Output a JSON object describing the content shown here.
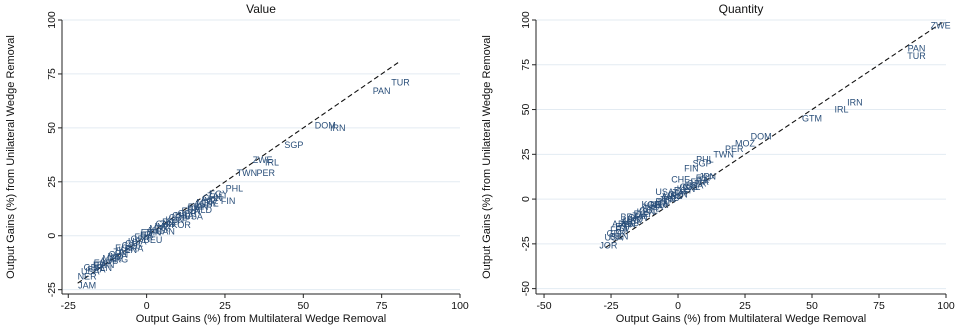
{
  "chart_data": [
    {
      "type": "scatter",
      "title": "Value",
      "xlabel": "Output Gains (%) from Multilateral Wedge Removal",
      "ylabel": "Output Gains (%) from Unilateral Wedge Removal",
      "xlim": [
        -27,
        100
      ],
      "ylim": [
        -27,
        100
      ],
      "xticks": [
        -25,
        0,
        25,
        50,
        75,
        100
      ],
      "yticks": [
        -25,
        0,
        25,
        50,
        75,
        100
      ],
      "grid": "horizontal",
      "reference_line": {
        "style": "dashed",
        "x": [
          -22,
          81
        ],
        "y": [
          -22,
          81
        ]
      },
      "labeled_points": [
        {
          "label": "TUR",
          "x": 81,
          "y": 71
        },
        {
          "label": "PAN",
          "x": 75,
          "y": 67
        },
        {
          "label": "IRN",
          "x": 61,
          "y": 50
        },
        {
          "label": "DOM",
          "x": 57,
          "y": 51
        },
        {
          "label": "SGP",
          "x": 47,
          "y": 42
        },
        {
          "label": "ZWE",
          "x": 37,
          "y": 35
        },
        {
          "label": "IRL",
          "x": 40,
          "y": 34
        },
        {
          "label": "PER",
          "x": 38,
          "y": 29
        },
        {
          "label": "TWN",
          "x": 32,
          "y": 29
        },
        {
          "label": "PHL",
          "x": 28,
          "y": 22
        },
        {
          "label": "FIN",
          "x": 26,
          "y": 16
        },
        {
          "label": "CHE",
          "x": 20,
          "y": 15
        },
        {
          "label": "NLD",
          "x": 18,
          "y": 12
        },
        {
          "label": "USA",
          "x": 15,
          "y": 9
        },
        {
          "label": "KOR",
          "x": 11,
          "y": 5
        },
        {
          "label": "CAN",
          "x": 6,
          "y": 2
        },
        {
          "label": "DEU",
          "x": 2,
          "y": -2
        },
        {
          "label": "BRA",
          "x": -4,
          "y": -6
        },
        {
          "label": "ARG",
          "x": -9,
          "y": -11
        },
        {
          "label": "SEN",
          "x": -14,
          "y": -15
        },
        {
          "label": "NER",
          "x": -19,
          "y": -19
        },
        {
          "label": "JAM",
          "x": -19,
          "y": -23
        }
      ],
      "cluster_points": [
        [
          -18,
          -18
        ],
        [
          -17,
          -16
        ],
        [
          -16,
          -17
        ],
        [
          -15,
          -15
        ],
        [
          -14,
          -14
        ],
        [
          -13,
          -15
        ],
        [
          -12,
          -13
        ],
        [
          -11,
          -12
        ],
        [
          -10,
          -11
        ],
        [
          -9,
          -10
        ],
        [
          -8,
          -9
        ],
        [
          -7,
          -7
        ],
        [
          -6,
          -8
        ],
        [
          -5,
          -6
        ],
        [
          -4,
          -5
        ],
        [
          -3,
          -4
        ],
        [
          -2,
          -3
        ],
        [
          -1,
          -2
        ],
        [
          0,
          -1
        ],
        [
          1,
          0
        ],
        [
          2,
          0
        ],
        [
          3,
          1
        ],
        [
          4,
          2
        ],
        [
          5,
          3
        ],
        [
          6,
          4
        ],
        [
          7,
          4
        ],
        [
          8,
          5
        ],
        [
          9,
          6
        ],
        [
          10,
          7
        ],
        [
          11,
          8
        ],
        [
          12,
          8
        ],
        [
          13,
          9
        ],
        [
          14,
          10
        ],
        [
          15,
          11
        ],
        [
          16,
          12
        ],
        [
          17,
          12
        ],
        [
          18,
          13
        ],
        [
          19,
          14
        ],
        [
          20,
          15
        ],
        [
          21,
          16
        ],
        [
          22,
          17
        ],
        [
          23,
          18
        ]
      ]
    },
    {
      "type": "scatter",
      "title": "Quantity",
      "xlabel": "Output Gains (%) from Multilateral Wedge Removal",
      "ylabel": "Output Gains (%) from Unilateral Wedge Removal",
      "xlim": [
        -53,
        100
      ],
      "ylim": [
        -53,
        100
      ],
      "xticks": [
        -50,
        -25,
        0,
        25,
        50,
        75,
        100
      ],
      "yticks": [
        -50,
        -25,
        0,
        25,
        50,
        75,
        100
      ],
      "grid": "horizontal",
      "reference_line": {
        "style": "dashed",
        "x": [
          -27,
          99
        ],
        "y": [
          -27,
          99
        ]
      },
      "labeled_points": [
        {
          "label": "ZWE",
          "x": 98,
          "y": 97
        },
        {
          "label": "PAN",
          "x": 89,
          "y": 84
        },
        {
          "label": "TUR",
          "x": 89,
          "y": 80
        },
        {
          "label": "IRN",
          "x": 66,
          "y": 54
        },
        {
          "label": "IRL",
          "x": 61,
          "y": 50
        },
        {
          "label": "GTM",
          "x": 50,
          "y": 45
        },
        {
          "label": "DOM",
          "x": 31,
          "y": 35
        },
        {
          "label": "MOZ",
          "x": 25,
          "y": 31
        },
        {
          "label": "PER",
          "x": 21,
          "y": 28
        },
        {
          "label": "TWN",
          "x": 17,
          "y": 25
        },
        {
          "label": "PHL",
          "x": 10,
          "y": 22
        },
        {
          "label": "SGP",
          "x": 9,
          "y": 20
        },
        {
          "label": "FIN",
          "x": 5,
          "y": 17
        },
        {
          "label": "CHE",
          "x": 1,
          "y": 11
        },
        {
          "label": "USA",
          "x": -5,
          "y": 4
        },
        {
          "label": "KOR",
          "x": -10,
          "y": -3
        },
        {
          "label": "BRA",
          "x": -18,
          "y": -10
        },
        {
          "label": "ARG",
          "x": -21,
          "y": -14
        },
        {
          "label": "BEN",
          "x": -22,
          "y": -21
        },
        {
          "label": "JOR",
          "x": -26,
          "y": -26
        }
      ],
      "cluster_points": [
        [
          -24,
          -23
        ],
        [
          -23,
          -21
        ],
        [
          -22,
          -19
        ],
        [
          -21,
          -18
        ],
        [
          -20,
          -17
        ],
        [
          -19,
          -16
        ],
        [
          -18,
          -15
        ],
        [
          -17,
          -14
        ],
        [
          -16,
          -13
        ],
        [
          -15,
          -12
        ],
        [
          -14,
          -11
        ],
        [
          -13,
          -10
        ],
        [
          -12,
          -9
        ],
        [
          -11,
          -8
        ],
        [
          -10,
          -7
        ],
        [
          -9,
          -6
        ],
        [
          -8,
          -5
        ],
        [
          -7,
          -5
        ],
        [
          -6,
          -4
        ],
        [
          -5,
          -3
        ],
        [
          -4,
          -2
        ],
        [
          -3,
          -1
        ],
        [
          -2,
          0
        ],
        [
          -1,
          0
        ],
        [
          0,
          1
        ],
        [
          1,
          2
        ],
        [
          2,
          3
        ],
        [
          3,
          4
        ],
        [
          4,
          5
        ],
        [
          5,
          5
        ],
        [
          6,
          6
        ],
        [
          7,
          7
        ],
        [
          8,
          8
        ],
        [
          9,
          9
        ],
        [
          10,
          10
        ],
        [
          11,
          11
        ]
      ]
    }
  ]
}
